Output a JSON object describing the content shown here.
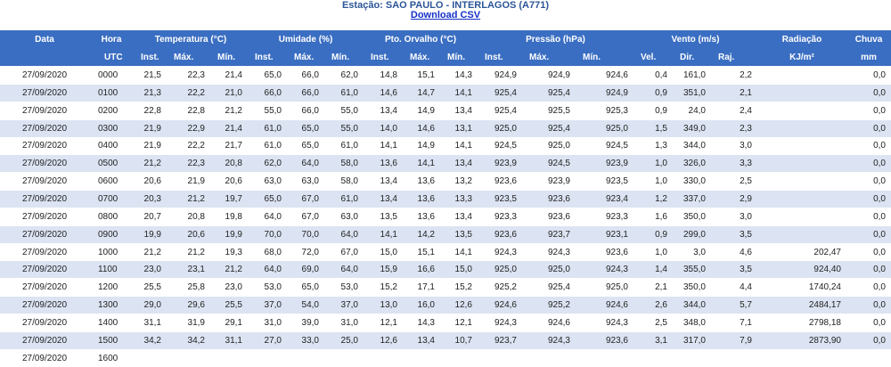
{
  "header": {
    "title": "Estação: SAO PAULO - INTERLAGOS (A771)",
    "download_link": "Download CSV"
  },
  "table": {
    "group_headers": [
      "Data",
      "Hora",
      "Temperatura (°C)",
      "Umidade (%)",
      "Pto. Orvalho (°C)",
      "Pressão (hPa)",
      "Vento (m/s)",
      "Radiação",
      "Chuva"
    ],
    "sub_headers": [
      null,
      "UTC",
      "Inst.",
      "Máx.",
      "Mín.",
      "Inst.",
      "Máx.",
      "Mín.",
      "Inst.",
      "Máx.",
      "Mín.",
      "Inst.",
      "Máx.",
      "Mín.",
      "Vel.",
      "Dir.",
      "Raj.",
      "KJ/m²",
      "mm"
    ],
    "rows": [
      [
        "27/09/2020",
        "0000",
        "21,5",
        "22,3",
        "21,4",
        "65,0",
        "66,0",
        "62,0",
        "14,8",
        "15,1",
        "14,3",
        "924,9",
        "924,9",
        "924,6",
        "0,4",
        "161,0",
        "2,2",
        null,
        "0,0"
      ],
      [
        "27/09/2020",
        "0100",
        "21,3",
        "22,2",
        "21,0",
        "66,0",
        "66,0",
        "61,0",
        "14,6",
        "14,7",
        "14,1",
        "925,4",
        "925,4",
        "924,9",
        "0,9",
        "351,0",
        "2,1",
        null,
        "0,0"
      ],
      [
        "27/09/2020",
        "0200",
        "22,8",
        "22,8",
        "21,2",
        "55,0",
        "66,0",
        "55,0",
        "13,4",
        "14,9",
        "13,4",
        "925,4",
        "925,5",
        "925,3",
        "0,9",
        "24,0",
        "2,4",
        null,
        "0,0"
      ],
      [
        "27/09/2020",
        "0300",
        "21,9",
        "22,9",
        "21,4",
        "61,0",
        "65,0",
        "55,0",
        "14,0",
        "14,6",
        "13,1",
        "925,0",
        "925,4",
        "925,0",
        "1,5",
        "349,0",
        "2,3",
        null,
        "0,0"
      ],
      [
        "27/09/2020",
        "0400",
        "21,9",
        "22,2",
        "21,7",
        "61,0",
        "65,0",
        "61,0",
        "14,1",
        "14,9",
        "14,1",
        "924,5",
        "925,0",
        "924,5",
        "1,3",
        "344,0",
        "3,0",
        null,
        "0,0"
      ],
      [
        "27/09/2020",
        "0500",
        "21,2",
        "22,3",
        "20,8",
        "62,0",
        "64,0",
        "58,0",
        "13,6",
        "14,1",
        "13,4",
        "923,9",
        "924,5",
        "923,9",
        "1,0",
        "326,0",
        "3,3",
        null,
        "0,0"
      ],
      [
        "27/09/2020",
        "0600",
        "20,6",
        "21,9",
        "20,6",
        "63,0",
        "63,0",
        "58,0",
        "13,4",
        "13,6",
        "13,2",
        "923,6",
        "923,9",
        "923,5",
        "1,0",
        "330,0",
        "2,5",
        null,
        "0,0"
      ],
      [
        "27/09/2020",
        "0700",
        "20,3",
        "21,2",
        "19,7",
        "65,0",
        "67,0",
        "61,0",
        "13,4",
        "13,6",
        "13,3",
        "923,5",
        "923,6",
        "923,4",
        "1,2",
        "337,0",
        "2,9",
        null,
        "0,0"
      ],
      [
        "27/09/2020",
        "0800",
        "20,7",
        "20,8",
        "19,8",
        "64,0",
        "67,0",
        "63,0",
        "13,5",
        "13,6",
        "13,4",
        "923,3",
        "923,6",
        "923,3",
        "1,6",
        "350,0",
        "3,0",
        null,
        "0,0"
      ],
      [
        "27/09/2020",
        "0900",
        "19,9",
        "20,6",
        "19,9",
        "70,0",
        "70,0",
        "64,0",
        "14,1",
        "14,2",
        "13,5",
        "923,6",
        "923,7",
        "923,1",
        "0,9",
        "299,0",
        "3,5",
        null,
        "0,0"
      ],
      [
        "27/09/2020",
        "1000",
        "21,2",
        "21,2",
        "19,3",
        "68,0",
        "72,0",
        "67,0",
        "15,0",
        "15,1",
        "14,1",
        "924,3",
        "924,3",
        "923,6",
        "1,0",
        "3,0",
        "4,6",
        "202,47",
        "0,0"
      ],
      [
        "27/09/2020",
        "1100",
        "23,0",
        "23,1",
        "21,2",
        "64,0",
        "69,0",
        "64,0",
        "15,9",
        "16,6",
        "15,0",
        "925,0",
        "925,0",
        "924,3",
        "1,4",
        "355,0",
        "3,5",
        "924,40",
        "0,0"
      ],
      [
        "27/09/2020",
        "1200",
        "25,5",
        "25,8",
        "23,0",
        "53,0",
        "65,0",
        "53,0",
        "15,2",
        "17,1",
        "15,2",
        "925,2",
        "925,4",
        "925,0",
        "2,1",
        "350,0",
        "4,4",
        "1740,24",
        "0,0"
      ],
      [
        "27/09/2020",
        "1300",
        "29,0",
        "29,6",
        "25,5",
        "37,0",
        "54,0",
        "37,0",
        "13,0",
        "16,0",
        "12,6",
        "924,6",
        "925,2",
        "924,6",
        "2,6",
        "344,0",
        "5,7",
        "2484,17",
        "0,0"
      ],
      [
        "27/09/2020",
        "1400",
        "31,1",
        "31,9",
        "29,1",
        "31,0",
        "39,0",
        "31,0",
        "12,1",
        "14,3",
        "12,1",
        "924,3",
        "924,6",
        "924,3",
        "2,5",
        "348,0",
        "7,1",
        "2798,18",
        "0,0"
      ],
      [
        "27/09/2020",
        "1500",
        "34,2",
        "34,2",
        "31,1",
        "27,0",
        "33,0",
        "25,0",
        "12,6",
        "13,4",
        "10,7",
        "923,7",
        "924,3",
        "923,6",
        "3,1",
        "317,0",
        "7,9",
        "2873,90",
        "0,0"
      ]
    ],
    "partial_row": [
      "27/09/2020",
      "1600"
    ]
  }
}
